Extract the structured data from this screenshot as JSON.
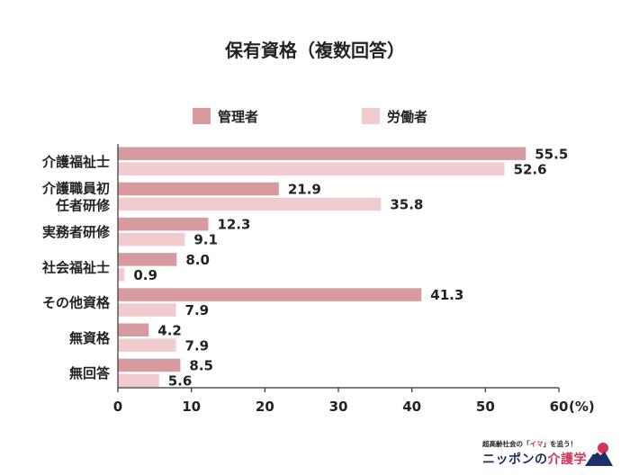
{
  "chart_data": {
    "type": "bar",
    "orientation": "horizontal",
    "title": "保有資格（複数回答）",
    "categories": [
      [
        "介護福祉士"
      ],
      [
        "介護職員初",
        "任者研修"
      ],
      [
        "実務者研修"
      ],
      [
        "社会福祉士"
      ],
      [
        "その他資格"
      ],
      [
        "無資格"
      ],
      [
        "無回答"
      ]
    ],
    "series": [
      {
        "name": "管理者",
        "color": "#d79a9e",
        "values": [
          55.5,
          21.9,
          12.3,
          8.0,
          41.3,
          4.2,
          8.5
        ],
        "labels": [
          "55.5",
          "21.9",
          "12.3",
          "8.0",
          "41.3",
          "4.2",
          "8.5"
        ]
      },
      {
        "name": "労働者",
        "color": "#f0ccce",
        "values": [
          52.6,
          35.8,
          9.1,
          0.9,
          7.9,
          7.9,
          5.6
        ],
        "labels": [
          "52.6",
          "35.8",
          "9.1",
          "0.9",
          "7.9",
          "7.9",
          "5.6"
        ]
      }
    ],
    "xlim": [
      0,
      60
    ],
    "xticks": [
      0,
      10,
      20,
      30,
      40,
      50,
      60
    ],
    "xticklabels": [
      "0",
      "10",
      "20",
      "30",
      "40",
      "50",
      "60"
    ],
    "unit": "(%)",
    "legend_position": "top",
    "grid": false
  },
  "logo": {
    "tagline_pre": "超高齢社会の「",
    "tagline_accent": "イマ",
    "tagline_post": "」を追う！",
    "name_pre": "ニッポンの",
    "name_accent": "介護学"
  }
}
